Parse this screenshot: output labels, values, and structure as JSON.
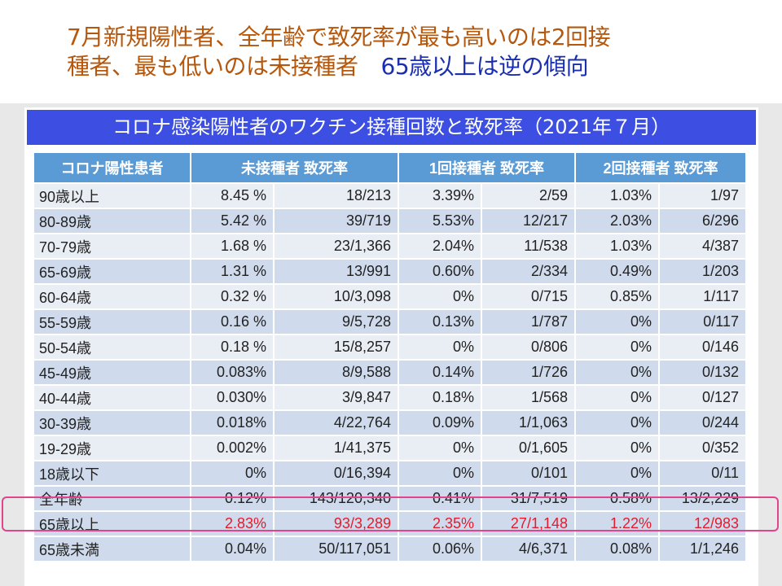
{
  "headline": {
    "line1": "7月新規陽性者、全年齢で致死率が最も高いのは2回接",
    "line2": "種者、最も低いのは未接種者",
    "line2_blue": "65歳以上は逆の傾向"
  },
  "table": {
    "title": "コロナ感染陽性者のワクチン接種回数と致死率（2021年７月）",
    "headers": [
      "コロナ陽性患者",
      "未接種者 致死率",
      "1回接種者 致死率",
      "2回接種者 致死率"
    ],
    "rows": [
      [
        "90歳以上",
        "8.45 %",
        "18/213",
        "3.39%",
        "2/59",
        "1.03%",
        "1/97"
      ],
      [
        "80-89歳",
        "5.42 %",
        "39/719",
        "5.53%",
        "12/217",
        "2.03%",
        "6/296"
      ],
      [
        "70-79歳",
        "1.68 %",
        "23/1,366",
        "2.04%",
        "11/538",
        "1.03%",
        "4/387"
      ],
      [
        "65-69歳",
        "1.31 %",
        "13/991",
        "0.60%",
        "2/334",
        "0.49%",
        "1/203"
      ],
      [
        "60-64歳",
        "0.32 %",
        "10/3,098",
        "0%",
        "0/715",
        "0.85%",
        "1/117"
      ],
      [
        "55-59歳",
        "0.16 %",
        "9/5,728",
        "0.13%",
        "1/787",
        "0%",
        "0/117"
      ],
      [
        "50-54歳",
        "0.18 %",
        "15/8,257",
        "0%",
        "0/806",
        "0%",
        "0/146"
      ],
      [
        "45-49歳",
        "0.083%",
        "8/9,588",
        "0.14%",
        "1/726",
        "0%",
        "0/132"
      ],
      [
        "40-44歳",
        "0.030%",
        "3/9,847",
        "0.18%",
        "1/568",
        "0%",
        "0/127"
      ],
      [
        "30-39歳",
        "0.018%",
        "4/22,764",
        "0.09%",
        "1/1,063",
        "0%",
        "0/244"
      ],
      [
        "19-29歳",
        "0.002%",
        "1/41,375",
        "0%",
        "0/1,605",
        "0%",
        "0/352"
      ],
      [
        "18歳以下",
        "0%",
        "0/16,394",
        "0%",
        "0/101",
        "0%",
        "0/11"
      ],
      [
        "全年齢",
        "0.12%",
        "143/120,340",
        "0.41%",
        "31/7,519",
        "0.58%",
        "13/2,229"
      ],
      [
        "65歳以上",
        "2.83%",
        "93/3,289",
        "2.35%",
        "27/1,148",
        "1.22%",
        "12/983"
      ],
      [
        "65歳未満",
        "0.04%",
        "50/117,051",
        "0.06%",
        "4/6,371",
        "0.08%",
        "1/1,246"
      ]
    ],
    "highlighted_row": "全年齢",
    "red_row": "65歳以上"
  },
  "colors": {
    "title_bar": "#3d4fe3",
    "header": "#5b9bd5",
    "highlight_box": "#e0448c",
    "red_text": "#e8192c",
    "headline": "#b5580e",
    "headline_blue": "#1a2fb0"
  }
}
